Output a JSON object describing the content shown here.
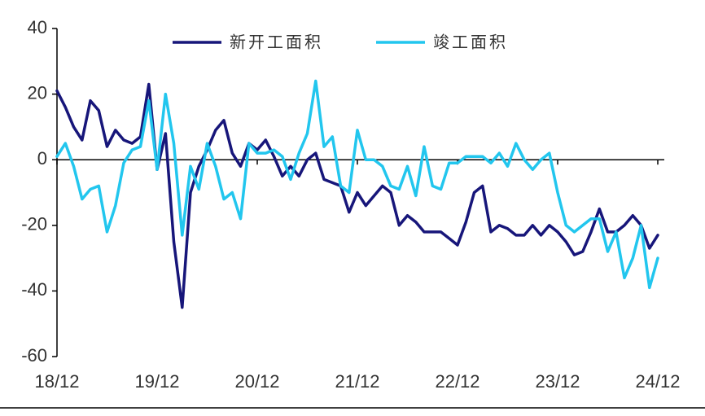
{
  "chart_data": {
    "type": "line",
    "categories": [
      "18/12",
      null,
      null,
      null,
      null,
      null,
      null,
      null,
      null,
      null,
      null,
      null,
      "19/12",
      null,
      null,
      null,
      null,
      null,
      null,
      null,
      null,
      null,
      null,
      null,
      "20/12",
      null,
      null,
      null,
      null,
      null,
      null,
      null,
      null,
      null,
      null,
      null,
      "21/12",
      null,
      null,
      null,
      null,
      null,
      null,
      null,
      null,
      null,
      null,
      null,
      "22/12",
      null,
      null,
      null,
      null,
      null,
      null,
      null,
      null,
      null,
      null,
      null,
      "23/12",
      null,
      null,
      null,
      null,
      null,
      null,
      null,
      null,
      null,
      null,
      null,
      "24/12"
    ],
    "series": [
      {
        "name": "新开工面积",
        "color": "#17167a",
        "values": [
          21,
          16,
          10,
          6,
          18,
          15,
          4,
          9,
          6,
          5,
          7,
          23,
          -3,
          8,
          -25,
          -45,
          -10,
          -2,
          3,
          9,
          12,
          2,
          -2,
          5,
          3,
          6,
          1,
          -5,
          -2,
          -5,
          0,
          2,
          -6,
          -7,
          -8,
          -16,
          -10,
          -14,
          -11,
          -8,
          -10,
          -20,
          -17,
          -19,
          -22,
          -22,
          -22,
          -24,
          -26,
          -19,
          -10,
          -8,
          -22,
          -20,
          -21,
          -23,
          -23,
          -20,
          -23,
          -20,
          -22,
          -25,
          -29,
          -28,
          -22,
          -15,
          -22,
          -22,
          -20,
          -17,
          -20,
          -27,
          -23
        ]
      },
      {
        "name": "竣工面积",
        "color": "#22c6ee",
        "values": [
          1,
          5,
          -2,
          -12,
          -9,
          -8,
          -22,
          -14,
          -1,
          3,
          4,
          18,
          -3,
          20,
          5,
          -23,
          -2,
          -9,
          5,
          -2,
          -12,
          -10,
          -18,
          5,
          2,
          2,
          3,
          1,
          -6,
          2,
          8,
          24,
          4,
          7,
          -8,
          -10,
          9,
          0,
          0,
          -2,
          -8,
          -9,
          -2,
          -11,
          4,
          -8,
          -9,
          -1,
          -1,
          1,
          1,
          1,
          -1,
          2,
          -2,
          5,
          0,
          -3,
          0,
          2,
          -10,
          -20,
          -22,
          -20,
          -18,
          -18,
          -28,
          -22,
          -36,
          -30,
          -20,
          -39,
          -30
        ]
      }
    ],
    "ylim": [
      -60,
      40
    ],
    "yticks": [
      -60,
      -40,
      -20,
      0,
      20,
      40
    ],
    "legend": "top"
  }
}
